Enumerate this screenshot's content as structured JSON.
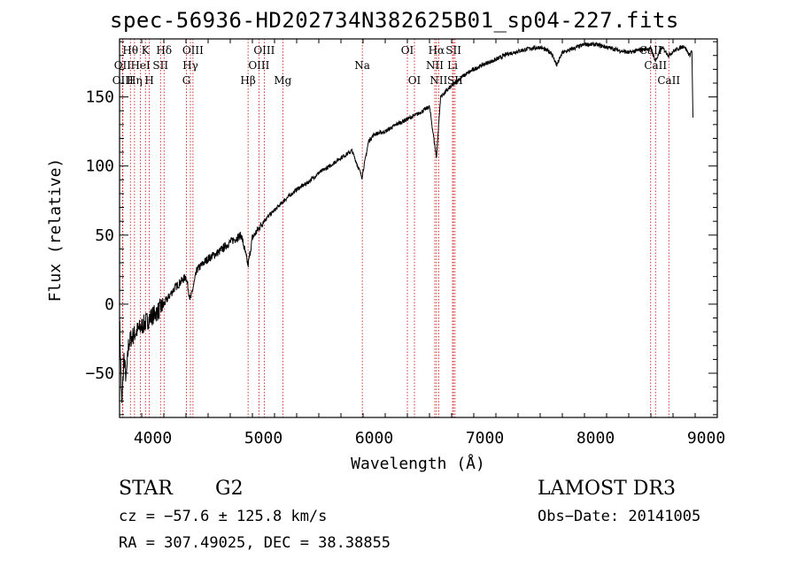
{
  "header": {
    "title": "spec-56936-HD202734N382625B01_sp04-227.fits"
  },
  "info": {
    "object_class": "STAR",
    "subclass": "G2",
    "survey": "LAMOST DR3",
    "cz": "cz = −57.6 ± 125.8 km/s",
    "obs_date": "Obs−Date: 20141005",
    "coords": "RA = 307.49025, DEC =  38.38855"
  },
  "colors": {
    "line_marker": "#cc0000",
    "spectrum": "#000000",
    "axis": "#000000"
  },
  "chart_data": {
    "type": "line",
    "title": "spec-56936-HD202734N382625B01_sp04-227.fits",
    "xlabel": "Wavelength (Å)",
    "ylabel": "Flux (relative)",
    "xlim": [
      3700,
      9100
    ],
    "ylim": [
      -82,
      192
    ],
    "x_ticks": [
      4000,
      5000,
      6000,
      7000,
      8000,
      9000
    ],
    "x_tick_labels": [
      "4000",
      "5000",
      "6000",
      "7000",
      "8000",
      "9000"
    ],
    "y_ticks": [
      -50,
      0,
      50,
      100,
      150
    ],
    "y_tick_labels": [
      "−50",
      "0",
      "50",
      "100",
      "150"
    ],
    "grid": false,
    "series": [
      {
        "name": "flux",
        "x": [
          3700,
          3720,
          3740,
          3760,
          3780,
          3800,
          3850,
          3900,
          3950,
          4000,
          4050,
          4100,
          4200,
          4300,
          4340,
          4400,
          4500,
          4600,
          4700,
          4800,
          4861,
          4900,
          5000,
          5100,
          5200,
          5300,
          5400,
          5500,
          5600,
          5700,
          5800,
          5890,
          5950,
          6000,
          6100,
          6200,
          6300,
          6400,
          6500,
          6563,
          6600,
          6700,
          6800,
          6900,
          7000,
          7100,
          7200,
          7300,
          7400,
          7500,
          7600,
          7650,
          7700,
          7800,
          7900,
          8000,
          8100,
          8200,
          8300,
          8400,
          8500,
          8542,
          8600,
          8662,
          8700,
          8800,
          8850,
          8870,
          8880
        ],
        "y": [
          -10,
          -75,
          -38,
          -55,
          -30,
          -25,
          -20,
          -16,
          -12,
          -8,
          -5,
          0,
          12,
          20,
          3,
          25,
          33,
          38,
          45,
          50,
          28,
          48,
          60,
          68,
          76,
          83,
          88,
          95,
          100,
          106,
          111,
          92,
          118,
          123,
          125,
          130,
          134,
          138,
          143,
          106,
          150,
          158,
          165,
          170,
          174,
          177,
          181,
          183,
          185,
          186,
          182,
          173,
          182,
          185,
          188,
          188,
          186,
          184,
          182,
          184,
          185,
          176,
          186,
          180,
          183,
          187,
          180,
          184,
          135
        ]
      }
    ],
    "line_markers": [
      {
        "name": "Hθ",
        "wavelength": 3798,
        "row": 1
      },
      {
        "name": "OII",
        "wavelength": 3727,
        "row": 2
      },
      {
        "name": "OIII",
        "wavelength": 3730,
        "row": 3
      },
      {
        "name": "K",
        "wavelength": 3934,
        "row": 1
      },
      {
        "name": "HeI",
        "wavelength": 3889,
        "row": 2
      },
      {
        "name": "Hη",
        "wavelength": 3835,
        "row": 3
      },
      {
        "name": "SII",
        "wavelength": 4070,
        "row": 2
      },
      {
        "name": "H",
        "wavelength": 3969,
        "row": 3
      },
      {
        "name": "Hδ",
        "wavelength": 4102,
        "row": 1
      },
      {
        "name": "OIII",
        "wavelength": 4363,
        "row": 1
      },
      {
        "name": "Hγ",
        "wavelength": 4340,
        "row": 2
      },
      {
        "name": "G",
        "wavelength": 4304,
        "row": 3
      },
      {
        "name": "Hβ",
        "wavelength": 4861,
        "row": 3
      },
      {
        "name": "OIII",
        "wavelength": 5007,
        "row": 1
      },
      {
        "name": "OIII",
        "wavelength": 4959,
        "row": 2
      },
      {
        "name": "Mg",
        "wavelength": 5175,
        "row": 3
      },
      {
        "name": "Na",
        "wavelength": 5893,
        "row": 2
      },
      {
        "name": "OI",
        "wavelength": 6300,
        "row": 1
      },
      {
        "name": "OI",
        "wavelength": 6364,
        "row": 3
      },
      {
        "name": "Hα",
        "wavelength": 6563,
        "row": 1
      },
      {
        "name": "SII",
        "wavelength": 6717,
        "row": 1
      },
      {
        "name": "NII",
        "wavelength": 6548,
        "row": 2
      },
      {
        "name": "Li",
        "wavelength": 6708,
        "row": 2
      },
      {
        "name": "NII",
        "wavelength": 6583,
        "row": 3
      },
      {
        "name": "SII",
        "wavelength": 6731,
        "row": 3
      },
      {
        "name": "CaII",
        "wavelength": 8498,
        "row": 1
      },
      {
        "name": "CaII",
        "wavelength": 8542,
        "row": 2
      },
      {
        "name": "CaII",
        "wavelength": 8662,
        "row": 3
      }
    ]
  }
}
